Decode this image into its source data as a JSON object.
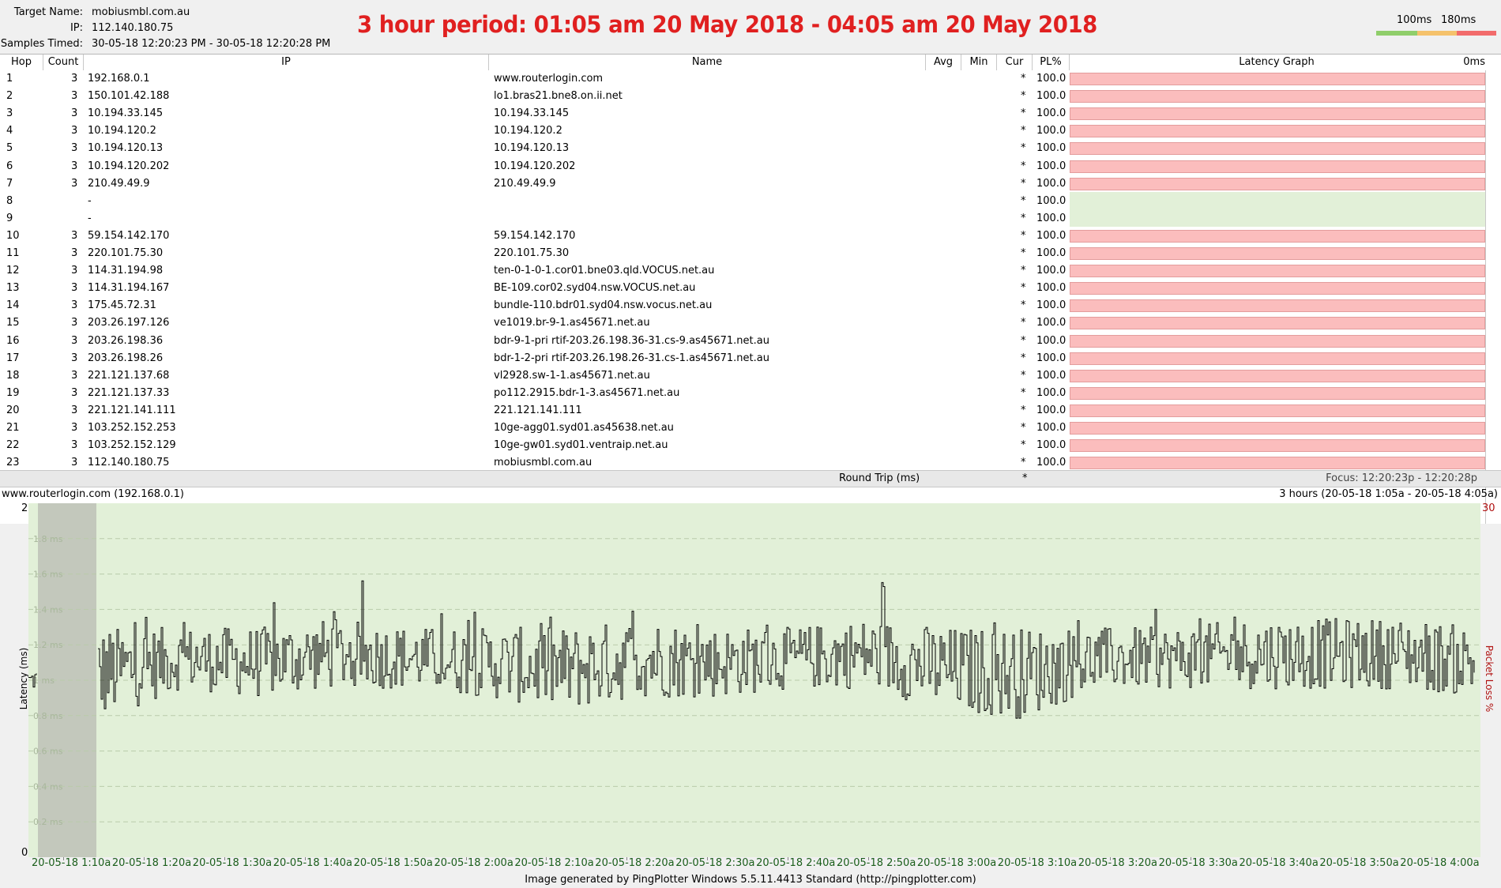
{
  "target": {
    "name_label": "Target Name:",
    "name_value": "mobiusmbl.com.au",
    "ip_label": "IP:",
    "ip_value": "112.140.180.75",
    "samples_label": "Samples Timed:",
    "samples_value": "30-05-18 12:20:23 PM - 30-05-18 12:20:28 PM"
  },
  "period_title": "3 hour period:  01:05 am 20 May 2018 - 04:05 am 20 May 2018",
  "scale": {
    "label_100": "100ms",
    "label_180": "180ms",
    "colors": [
      "#8fce6a",
      "#f5c26b",
      "#f26b6b"
    ]
  },
  "columns": {
    "hop": "Hop",
    "count": "Count",
    "ip": "IP",
    "name": "Name",
    "avg": "Avg",
    "min": "Min",
    "cur": "Cur",
    "pl": "PL%",
    "graph": "Latency Graph",
    "graph_ms": "0ms"
  },
  "hops": [
    {
      "hop": "1",
      "count": "3",
      "ip": "192.168.0.1",
      "name": "www.routerlogin.com",
      "cur": "*",
      "pl": "100.0",
      "bar": true
    },
    {
      "hop": "2",
      "count": "3",
      "ip": "150.101.42.188",
      "name": "lo1.bras21.bne8.on.ii.net",
      "cur": "*",
      "pl": "100.0",
      "bar": true
    },
    {
      "hop": "3",
      "count": "3",
      "ip": "10.194.33.145",
      "name": "10.194.33.145",
      "cur": "*",
      "pl": "100.0",
      "bar": true
    },
    {
      "hop": "4",
      "count": "3",
      "ip": "10.194.120.2",
      "name": "10.194.120.2",
      "cur": "*",
      "pl": "100.0",
      "bar": true
    },
    {
      "hop": "5",
      "count": "3",
      "ip": "10.194.120.13",
      "name": "10.194.120.13",
      "cur": "*",
      "pl": "100.0",
      "bar": true
    },
    {
      "hop": "6",
      "count": "3",
      "ip": "10.194.120.202",
      "name": "10.194.120.202",
      "cur": "*",
      "pl": "100.0",
      "bar": true
    },
    {
      "hop": "7",
      "count": "3",
      "ip": "210.49.49.9",
      "name": "210.49.49.9",
      "cur": "*",
      "pl": "100.0",
      "bar": true
    },
    {
      "hop": "8",
      "count": "",
      "ip": "-",
      "name": "",
      "cur": "*",
      "pl": "100.0",
      "bar": false
    },
    {
      "hop": "9",
      "count": "",
      "ip": "-",
      "name": "",
      "cur": "*",
      "pl": "100.0",
      "bar": false
    },
    {
      "hop": "10",
      "count": "3",
      "ip": "59.154.142.170",
      "name": "59.154.142.170",
      "cur": "*",
      "pl": "100.0",
      "bar": true
    },
    {
      "hop": "11",
      "count": "3",
      "ip": "220.101.75.30",
      "name": "220.101.75.30",
      "cur": "*",
      "pl": "100.0",
      "bar": true
    },
    {
      "hop": "12",
      "count": "3",
      "ip": "114.31.194.98",
      "name": "ten-0-1-0-1.cor01.bne03.qld.VOCUS.net.au",
      "cur": "*",
      "pl": "100.0",
      "bar": true
    },
    {
      "hop": "13",
      "count": "3",
      "ip": "114.31.194.167",
      "name": "BE-109.cor02.syd04.nsw.VOCUS.net.au",
      "cur": "*",
      "pl": "100.0",
      "bar": true
    },
    {
      "hop": "14",
      "count": "3",
      "ip": "175.45.72.31",
      "name": "bundle-110.bdr01.syd04.nsw.vocus.net.au",
      "cur": "*",
      "pl": "100.0",
      "bar": true
    },
    {
      "hop": "15",
      "count": "3",
      "ip": "203.26.197.126",
      "name": "ve1019.br-9-1.as45671.net.au",
      "cur": "*",
      "pl": "100.0",
      "bar": true
    },
    {
      "hop": "16",
      "count": "3",
      "ip": "203.26.198.36",
      "name": "bdr-9-1-pri rtif-203.26.198.36-31.cs-9.as45671.net.au",
      "cur": "*",
      "pl": "100.0",
      "bar": true
    },
    {
      "hop": "17",
      "count": "3",
      "ip": "203.26.198.26",
      "name": "bdr-1-2-pri rtif-203.26.198.26-31.cs-1.as45671.net.au",
      "cur": "*",
      "pl": "100.0",
      "bar": true
    },
    {
      "hop": "18",
      "count": "3",
      "ip": "221.121.137.68",
      "name": "vl2928.sw-1-1.as45671.net.au",
      "cur": "*",
      "pl": "100.0",
      "bar": true
    },
    {
      "hop": "19",
      "count": "3",
      "ip": "221.121.137.33",
      "name": "po112.2915.bdr-1-3.as45671.net.au",
      "cur": "*",
      "pl": "100.0",
      "bar": true
    },
    {
      "hop": "20",
      "count": "3",
      "ip": "221.121.141.111",
      "name": "221.121.141.111",
      "cur": "*",
      "pl": "100.0",
      "bar": true
    },
    {
      "hop": "21",
      "count": "3",
      "ip": "103.252.152.253",
      "name": "10ge-agg01.syd01.as45638.net.au",
      "cur": "*",
      "pl": "100.0",
      "bar": true
    },
    {
      "hop": "22",
      "count": "3",
      "ip": "103.252.152.129",
      "name": "10ge-gw01.syd01.ventraip.net.au",
      "cur": "*",
      "pl": "100.0",
      "bar": true
    },
    {
      "hop": "23",
      "count": "3",
      "ip": "112.140.180.75",
      "name": "mobiusmbl.com.au",
      "cur": "*",
      "pl": "100.0",
      "bar": true
    }
  ],
  "round_trip": {
    "label": "Round Trip (ms)",
    "cur": "*",
    "focus": "Focus: 12:20:23p - 12:20:28p"
  },
  "graph": {
    "host_label": "www.routerlogin.com (192.168.0.1)",
    "range_label": "3 hours (20-05-18 1:05a - 20-05-18 4:05a)",
    "y_axis_label": "Latency (ms)",
    "y2_axis_label": "Packet Loss %",
    "y_top": "2",
    "y_bottom": "0",
    "y2_top": "30"
  },
  "footer": "Image generated by PingPlotter Windows 5.5.11.4413 Standard (http://pingplotter.com)",
  "chart_data": {
    "type": "line",
    "ylabel": "Latency (ms)",
    "ylim": [
      0,
      2
    ],
    "y_ticks": [
      "1.8 ms",
      "1.6 ms",
      "1.4 ms",
      "1.2 ms",
      "1 ms",
      "0.8 ms",
      "0.6 ms",
      "0.4 ms",
      "0.2 ms"
    ],
    "y2label": "Packet Loss %",
    "y2lim": [
      0,
      30
    ],
    "x_tick_labels": [
      "20-05-18 1:10a",
      "20-05-18 1:20a",
      "20-05-18 1:30a",
      "20-05-18 1:40a",
      "20-05-18 1:50a",
      "20-05-18 2:00a",
      "20-05-18 2:10a",
      "20-05-18 2:20a",
      "20-05-18 2:30a",
      "20-05-18 2:40a",
      "20-05-18 2:50a",
      "20-05-18 3:00a",
      "20-05-18 3:10a",
      "20-05-18 3:20a",
      "20-05-18 3:30a",
      "20-05-18 3:40a",
      "20-05-18 3:50a",
      "20-05-18 4:00a"
    ],
    "series_color": "#000000",
    "gap_color": "#c3c8bc",
    "notes_only": false,
    "latency_envelope": {
      "x": [
        "1:05",
        "1:10",
        "1:20",
        "1:30",
        "1:40",
        "1:50",
        "2:00",
        "2:10",
        "2:20",
        "2:30",
        "2:40",
        "2:50",
        "3:00",
        "3:10",
        "3:20",
        "3:30",
        "3:40",
        "3:50",
        "4:00",
        "4:05"
      ],
      "typical_low": [
        0.95,
        0.78,
        0.95,
        0.9,
        0.95,
        0.95,
        0.9,
        0.82,
        0.9,
        0.9,
        0.95,
        0.95,
        0.82,
        0.78,
        0.95,
        0.95,
        0.95,
        0.95,
        0.95,
        0.9
      ],
      "typical_high": [
        1.05,
        1.3,
        1.3,
        1.3,
        1.35,
        1.3,
        1.3,
        1.3,
        1.35,
        1.3,
        1.3,
        1.35,
        1.3,
        1.3,
        1.3,
        1.3,
        1.35,
        1.35,
        1.35,
        1.3
      ],
      "spikes_max": [
        1.1,
        1.4,
        1.4,
        1.45,
        1.72,
        1.4,
        1.4,
        1.35,
        1.45,
        1.4,
        1.4,
        1.6,
        1.4,
        1.4,
        1.55,
        1.4,
        1.45,
        1.45,
        1.45,
        1.35
      ]
    }
  }
}
